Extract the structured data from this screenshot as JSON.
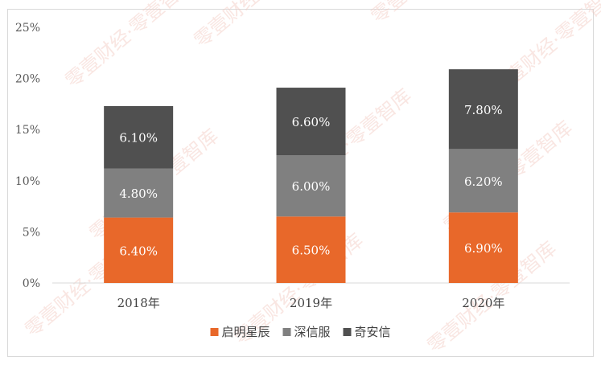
{
  "chart_data": {
    "type": "bar",
    "stacked": true,
    "categories": [
      "2018年",
      "2019年",
      "2020年"
    ],
    "series": [
      {
        "name": "启明星辰",
        "color": "#e8682a",
        "values": [
          6.4,
          6.5,
          6.9
        ],
        "labels": [
          "6.40%",
          "6.50%",
          "6.90%"
        ]
      },
      {
        "name": "深信服",
        "color": "#808080",
        "values": [
          4.8,
          6.0,
          6.2
        ],
        "labels": [
          "4.80%",
          "6.00%",
          "6.20%"
        ]
      },
      {
        "name": "奇安信",
        "color": "#505050",
        "values": [
          6.1,
          6.6,
          7.8
        ],
        "labels": [
          "6.10%",
          "6.60%",
          "7.80%"
        ]
      }
    ],
    "y_ticks": [
      "0%",
      "5%",
      "10%",
      "15%",
      "20%",
      "25%"
    ],
    "ylim": [
      0,
      25
    ],
    "grid": false,
    "legend": "bottom",
    "watermark": "零壹财经·零壹智库"
  }
}
